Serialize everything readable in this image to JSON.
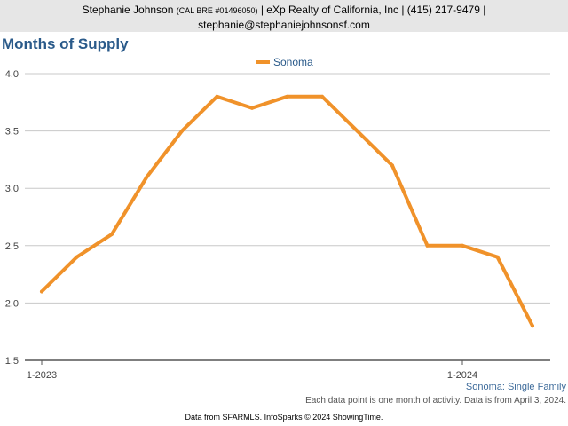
{
  "header": {
    "name": "Stephanie Johnson",
    "license": "(CAL BRE #01496050)",
    "company": "| eXp Realty of California, Inc | (415) 217-9479 |",
    "email": "stephanie@stephaniejohnsonsf.com"
  },
  "chart_data": {
    "type": "line",
    "title": "Months of Supply",
    "x": [
      "1-2023",
      "2-2023",
      "3-2023",
      "4-2023",
      "5-2023",
      "6-2023",
      "7-2023",
      "8-2023",
      "9-2023",
      "10-2023",
      "11-2023",
      "12-2023",
      "1-2024",
      "2-2024",
      "3-2024"
    ],
    "series": [
      {
        "name": "Sonoma",
        "color": "#f0922a",
        "values": [
          2.1,
          2.4,
          2.6,
          3.1,
          3.5,
          3.8,
          3.7,
          3.8,
          3.8,
          3.5,
          3.2,
          2.5,
          2.5,
          2.4,
          1.8
        ]
      }
    ],
    "x_tick_labels": [
      {
        "index": 0,
        "label": "1-2023"
      },
      {
        "index": 12,
        "label": "1-2024"
      }
    ],
    "ylim": [
      1.5,
      4.0
    ],
    "yticks": [
      "1.5",
      "2.0",
      "2.5",
      "3.0",
      "3.5",
      "4.0"
    ],
    "grid": true,
    "legend": "top-center",
    "subtitle": "Sonoma: Single Family",
    "note": "Each data point is one month of activity. Data is from April 3, 2024."
  },
  "footer": "Data from SFARMLS. InfoSparks © 2024 ShowingTime."
}
